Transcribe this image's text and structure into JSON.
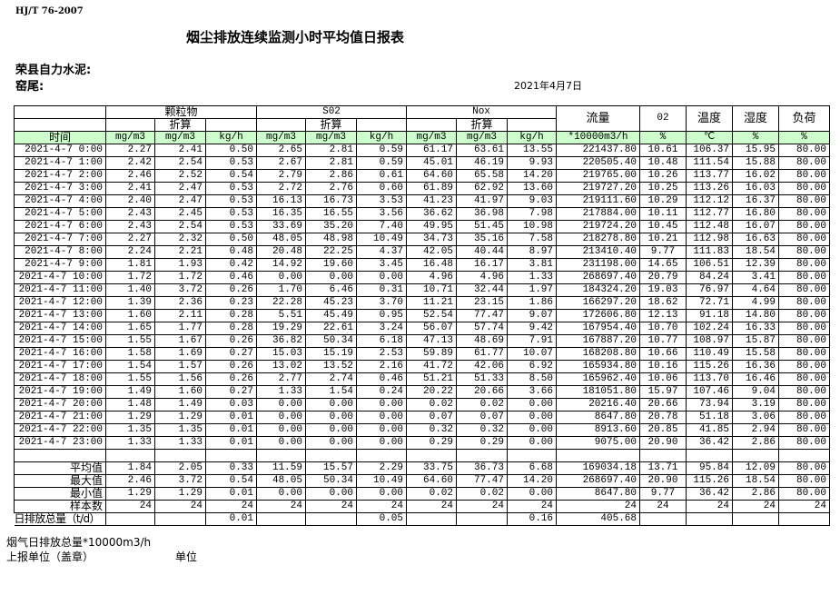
{
  "header": {
    "standard": "HJ/T  76-2007",
    "title": "烟尘排放连续监测小时平均值日报表",
    "company": "荣县自力水泥:",
    "kiln": "窑尾:",
    "date": "2021年4月7日"
  },
  "table": {
    "groups": {
      "particulate": "颗粒物",
      "so2": "S02",
      "nox": "Nox",
      "flow": "流量",
      "o2": "02",
      "temp": "温度",
      "humidity": "湿度",
      "load": "负荷"
    },
    "converted": "折算",
    "time_header": "时间",
    "units": [
      "mg/m3",
      "mg/m3",
      "kg/h",
      "mg/m3",
      "mg/m3",
      "kg/h",
      "mg/m3",
      "mg/m3",
      "kg/h",
      "*10000m3/h",
      "%",
      "℃",
      "%",
      "%"
    ],
    "rows": [
      [
        "2021-4-7 0:00",
        "2.27",
        "2.41",
        "0.50",
        "2.65",
        "2.81",
        "0.59",
        "61.17",
        "63.61",
        "13.55",
        "221437.80",
        "10.61",
        "106.37",
        "15.95",
        "80.00"
      ],
      [
        "2021-4-7 1:00",
        "2.42",
        "2.54",
        "0.53",
        "2.67",
        "2.81",
        "0.59",
        "45.01",
        "46.19",
        "9.93",
        "220505.40",
        "10.48",
        "111.54",
        "15.88",
        "80.00"
      ],
      [
        "2021-4-7 2:00",
        "2.46",
        "2.52",
        "0.54",
        "2.79",
        "2.86",
        "0.61",
        "64.60",
        "65.58",
        "14.20",
        "219765.00",
        "10.26",
        "113.77",
        "16.02",
        "80.00"
      ],
      [
        "2021-4-7 3:00",
        "2.41",
        "2.47",
        "0.53",
        "2.72",
        "2.76",
        "0.60",
        "61.89",
        "62.92",
        "13.60",
        "219727.20",
        "10.25",
        "113.26",
        "16.03",
        "80.00"
      ],
      [
        "2021-4-7 4:00",
        "2.40",
        "2.47",
        "0.53",
        "16.13",
        "16.73",
        "3.53",
        "41.23",
        "41.97",
        "9.03",
        "219111.60",
        "10.29",
        "112.12",
        "16.37",
        "80.00"
      ],
      [
        "2021-4-7 5:00",
        "2.43",
        "2.45",
        "0.53",
        "16.35",
        "16.55",
        "3.56",
        "36.62",
        "36.98",
        "7.98",
        "217884.00",
        "10.11",
        "112.77",
        "16.80",
        "80.00"
      ],
      [
        "2021-4-7 6:00",
        "2.43",
        "2.54",
        "0.53",
        "33.69",
        "35.20",
        "7.40",
        "49.95",
        "51.45",
        "10.98",
        "219724.20",
        "10.45",
        "112.48",
        "16.07",
        "80.00"
      ],
      [
        "2021-4-7 7:00",
        "2.27",
        "2.32",
        "0.50",
        "48.05",
        "48.98",
        "10.49",
        "34.73",
        "35.16",
        "7.58",
        "218278.80",
        "10.21",
        "112.98",
        "16.63",
        "80.00"
      ],
      [
        "2021-4-7 8:00",
        "2.24",
        "2.21",
        "0.48",
        "20.48",
        "22.25",
        "4.37",
        "42.05",
        "40.44",
        "8.97",
        "213410.40",
        "9.77",
        "111.83",
        "18.54",
        "80.00"
      ],
      [
        "2021-4-7 9:00",
        "1.81",
        "1.93",
        "0.42",
        "14.92",
        "19.60",
        "3.45",
        "16.48",
        "16.17",
        "3.81",
        "231198.00",
        "14.65",
        "106.51",
        "12.39",
        "80.00"
      ],
      [
        "2021-4-7 10:00",
        "1.72",
        "1.72",
        "0.46",
        "0.00",
        "0.00",
        "0.00",
        "4.96",
        "4.96",
        "1.33",
        "268697.40",
        "20.79",
        "84.24",
        "3.41",
        "80.00"
      ],
      [
        "2021-4-7 11:00",
        "1.40",
        "3.72",
        "0.26",
        "1.70",
        "6.46",
        "0.31",
        "10.71",
        "32.44",
        "1.97",
        "184324.20",
        "19.03",
        "76.97",
        "4.64",
        "80.00"
      ],
      [
        "2021-4-7 12:00",
        "1.39",
        "2.36",
        "0.23",
        "22.28",
        "45.23",
        "3.70",
        "11.21",
        "23.15",
        "1.86",
        "166297.20",
        "18.62",
        "72.71",
        "4.99",
        "80.00"
      ],
      [
        "2021-4-7 13:00",
        "1.60",
        "2.11",
        "0.28",
        "5.51",
        "45.49",
        "0.95",
        "52.54",
        "77.47",
        "9.07",
        "172606.80",
        "12.13",
        "91.18",
        "14.80",
        "80.00"
      ],
      [
        "2021-4-7 14:00",
        "1.65",
        "1.77",
        "0.28",
        "19.29",
        "22.61",
        "3.24",
        "56.07",
        "57.74",
        "9.42",
        "167954.40",
        "10.70",
        "102.24",
        "16.33",
        "80.00"
      ],
      [
        "2021-4-7 15:00",
        "1.55",
        "1.67",
        "0.26",
        "36.82",
        "50.34",
        "6.18",
        "47.13",
        "48.69",
        "7.91",
        "167887.20",
        "10.77",
        "108.97",
        "15.87",
        "80.00"
      ],
      [
        "2021-4-7 16:00",
        "1.58",
        "1.69",
        "0.27",
        "15.03",
        "15.19",
        "2.53",
        "59.89",
        "61.77",
        "10.07",
        "168208.80",
        "10.66",
        "110.49",
        "15.58",
        "80.00"
      ],
      [
        "2021-4-7 17:00",
        "1.54",
        "1.57",
        "0.26",
        "13.02",
        "13.52",
        "2.16",
        "41.72",
        "42.06",
        "6.92",
        "165934.80",
        "10.16",
        "115.26",
        "16.36",
        "80.00"
      ],
      [
        "2021-4-7 18:00",
        "1.55",
        "1.56",
        "0.26",
        "2.77",
        "2.74",
        "0.46",
        "51.21",
        "51.33",
        "8.50",
        "165962.40",
        "10.06",
        "113.70",
        "16.46",
        "80.00"
      ],
      [
        "2021-4-7 19:00",
        "1.49",
        "1.60",
        "0.27",
        "1.33",
        "1.54",
        "0.24",
        "20.22",
        "20.66",
        "3.66",
        "181051.80",
        "15.97",
        "107.46",
        "9.04",
        "80.00"
      ],
      [
        "2021-4-7 20:00",
        "1.48",
        "1.49",
        "0.03",
        "0.00",
        "0.00",
        "0.00",
        "0.02",
        "0.02",
        "0.00",
        "20216.40",
        "20.66",
        "73.94",
        "3.19",
        "80.00"
      ],
      [
        "2021-4-7 21:00",
        "1.29",
        "1.29",
        "0.01",
        "0.00",
        "0.00",
        "0.00",
        "0.07",
        "0.07",
        "0.00",
        "8647.80",
        "20.78",
        "51.18",
        "3.06",
        "80.00"
      ],
      [
        "2021-4-7 22:00",
        "1.35",
        "1.35",
        "0.01",
        "0.00",
        "0.00",
        "0.00",
        "0.32",
        "0.32",
        "0.00",
        "8913.60",
        "20.85",
        "41.85",
        "2.94",
        "80.00"
      ],
      [
        "2021-4-7 23:00",
        "1.33",
        "1.33",
        "0.01",
        "0.00",
        "0.00",
        "0.00",
        "0.29",
        "0.29",
        "0.00",
        "9075.00",
        "20.90",
        "36.42",
        "2.86",
        "80.00"
      ]
    ],
    "summary": [
      [
        "平均值",
        "1.84",
        "2.05",
        "0.33",
        "11.59",
        "15.57",
        "2.29",
        "33.75",
        "36.73",
        "6.68",
        "169034.18",
        "13.71",
        "95.84",
        "12.09",
        "80.00"
      ],
      [
        "最大值",
        "2.46",
        "3.72",
        "0.54",
        "48.05",
        "50.34",
        "10.49",
        "64.60",
        "77.47",
        "14.20",
        "268697.40",
        "20.90",
        "115.26",
        "18.54",
        "80.00"
      ],
      [
        "最小值",
        "1.29",
        "1.29",
        "0.01",
        "0.00",
        "0.00",
        "0.00",
        "0.02",
        "0.02",
        "0.00",
        "8647.80",
        "9.77",
        "36.42",
        "2.86",
        "80.00"
      ],
      [
        "样本数",
        "24",
        "24",
        "24",
        "24",
        "24",
        "24",
        "24",
        "24",
        "24",
        "24",
        "24",
        "24",
        "24",
        "24"
      ]
    ],
    "daily_total": [
      "日排放总量（t/d）",
      "",
      "",
      "0.01",
      "",
      "",
      "0.05",
      "",
      "",
      "0.16",
      "405.68",
      "",
      "",
      "",
      ""
    ]
  },
  "footer": {
    "flue_gas_total": "烟气日排放总量*10000m3/h",
    "reporting_unit": "上报单位（盖章）",
    "unit": "单位"
  }
}
